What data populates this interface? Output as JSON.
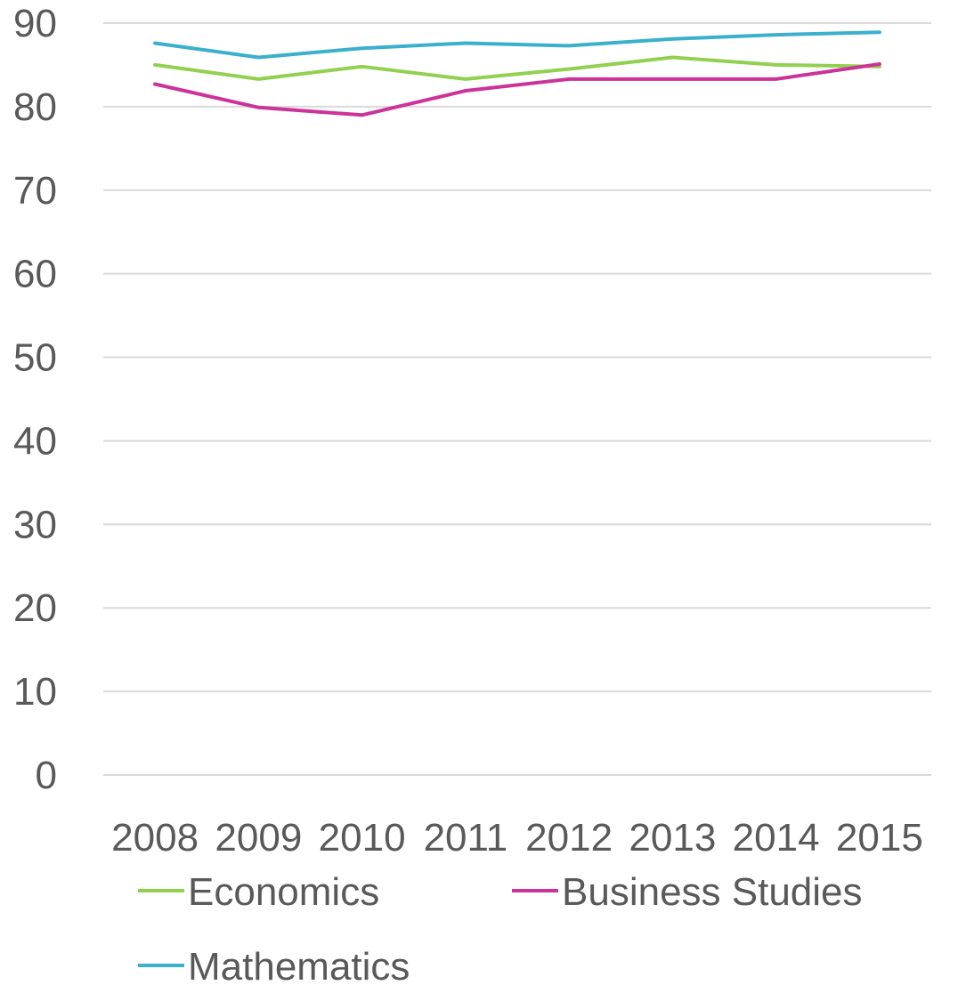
{
  "chart_data": {
    "type": "line",
    "categories": [
      "2008",
      "2009",
      "2010",
      "2011",
      "2012",
      "2013",
      "2014",
      "2015"
    ],
    "ylim": [
      0,
      90
    ],
    "yticks": [
      0,
      10,
      20,
      30,
      40,
      50,
      60,
      70,
      80,
      90
    ],
    "grid": true,
    "legend_position": "bottom",
    "series": [
      {
        "name": "Economics",
        "color": "#92d050",
        "values": [
          85.0,
          83.3,
          84.8,
          83.3,
          84.5,
          85.9,
          85.0,
          84.8
        ]
      },
      {
        "name": "Business Studies",
        "color": "#cc3399",
        "values": [
          82.7,
          79.9,
          79.0,
          81.9,
          83.3,
          83.3,
          83.3,
          85.1
        ]
      },
      {
        "name": "Mathematics",
        "color": "#3ab0cc",
        "values": [
          87.6,
          85.9,
          87.0,
          87.6,
          87.3,
          88.1,
          88.6,
          88.9
        ]
      }
    ]
  }
}
